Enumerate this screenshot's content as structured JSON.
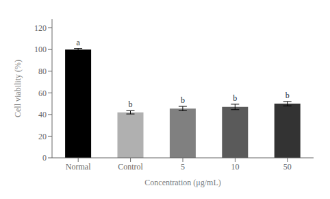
{
  "chart_data": {
    "type": "bar",
    "categories": [
      "Normal",
      "Control",
      "5",
      "10",
      "50"
    ],
    "values": [
      100,
      42,
      45.5,
      47,
      50
    ],
    "errors": [
      1.0,
      1.5,
      2.0,
      2.5,
      2.0
    ],
    "colors": [
      "#000000",
      "#b0b0b0",
      "#808080",
      "#5a5a5a",
      "#333333"
    ],
    "annotations": [
      "a",
      "b",
      "b",
      "b",
      "b"
    ],
    "xlabel": "Concentration (μg/mL)",
    "ylabel": "Cell viability (%)",
    "ylim": [
      0,
      128
    ],
    "yticks": [
      0,
      20,
      40,
      60,
      80,
      100,
      120
    ],
    "grid": false
  }
}
